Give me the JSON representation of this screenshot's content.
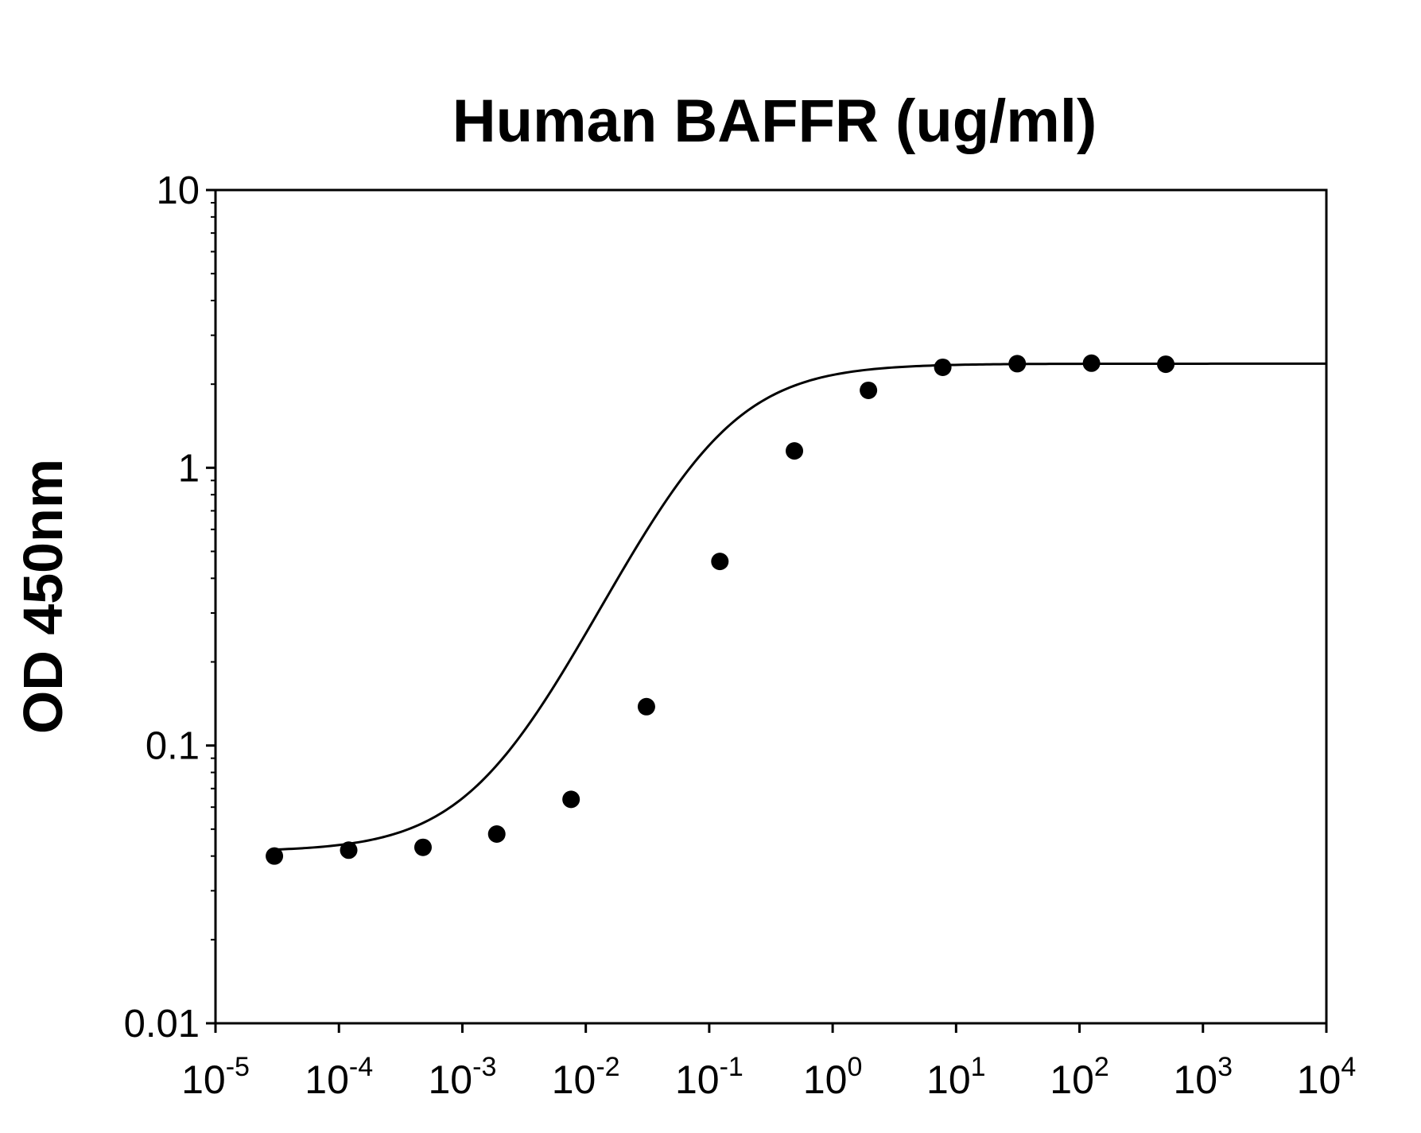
{
  "chart_data": {
    "type": "scatter",
    "title": "Human BAFFR (ug/ml)",
    "xlabel": "",
    "ylabel": "OD 450nm",
    "x_scale": "log",
    "y_scale": "log",
    "xlim": [
      1e-05,
      10000
    ],
    "ylim": [
      0.01,
      10
    ],
    "x_ticks": [
      {
        "value": 1e-05,
        "base": "10",
        "exp": "-5"
      },
      {
        "value": 0.0001,
        "base": "10",
        "exp": "-4"
      },
      {
        "value": 0.001,
        "base": "10",
        "exp": "-3"
      },
      {
        "value": 0.01,
        "base": "10",
        "exp": "-2"
      },
      {
        "value": 0.1,
        "base": "10",
        "exp": "-1"
      },
      {
        "value": 1,
        "base": "10",
        "exp": "0"
      },
      {
        "value": 10,
        "base": "10",
        "exp": "1"
      },
      {
        "value": 100,
        "base": "10",
        "exp": "2"
      },
      {
        "value": 1000,
        "base": "10",
        "exp": "3"
      },
      {
        "value": 10000,
        "base": "10",
        "exp": "4"
      }
    ],
    "y_ticks": [
      {
        "value": 0.01,
        "label": "0.01"
      },
      {
        "value": 0.1,
        "label": "0.1"
      },
      {
        "value": 1,
        "label": "1"
      },
      {
        "value": 10,
        "label": "10"
      }
    ],
    "grid": false,
    "series": [
      {
        "marker": "filled-circle",
        "color": "#000000",
        "x": [
          3e-05,
          0.00012,
          0.00048,
          0.0019,
          0.0076,
          0.031,
          0.122,
          0.49,
          1.95,
          7.8,
          31.3,
          125,
          500
        ],
        "y": [
          0.04,
          0.042,
          0.043,
          0.048,
          0.064,
          0.138,
          0.46,
          1.15,
          1.9,
          2.3,
          2.37,
          2.38,
          2.36
        ]
      }
    ],
    "fit_curve": {
      "model": "4PL",
      "color": "#000000",
      "bottom": 0.0415,
      "top": 2.37,
      "ec50": 0.1,
      "hill": 1.0
    }
  }
}
